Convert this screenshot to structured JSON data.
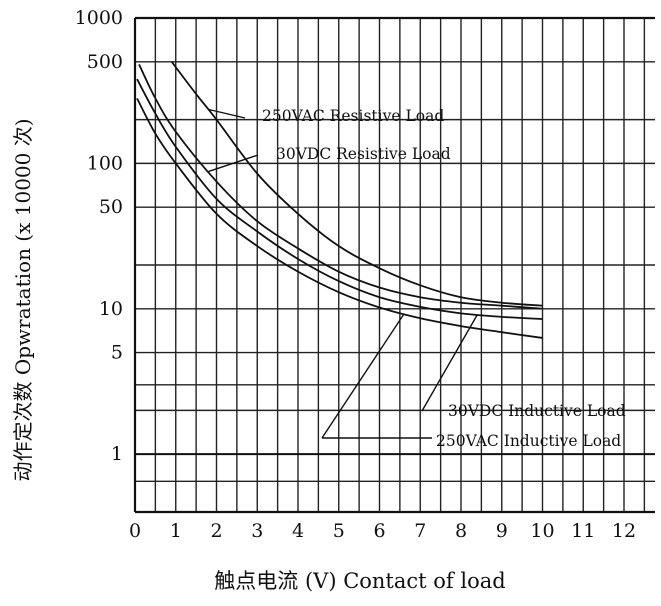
{
  "chart_data": {
    "type": "line",
    "title": "",
    "xlabel": "触点电流 (V) Contact of load",
    "ylabel": "动作定次数 Opwratation (x 10000 次)",
    "x_ticks": [
      0,
      1,
      2,
      3,
      4,
      5,
      6,
      7,
      8,
      9,
      10,
      11,
      12
    ],
    "xlim": [
      0,
      12.7
    ],
    "y_scale": "log",
    "y_ticks": [
      1,
      5,
      10,
      50,
      100,
      500,
      1000
    ],
    "ylim": [
      0.4,
      1000
    ],
    "grid": true,
    "series": [
      {
        "name": "250VAC Resistive Load",
        "x": [
          0.9,
          1.5,
          2,
          3,
          4,
          5,
          6,
          7,
          8,
          9,
          10
        ],
        "y": [
          500,
          300,
          200,
          85,
          45,
          27,
          19,
          14.5,
          12,
          11,
          10.5
        ]
      },
      {
        "name": "30VDC Resistive Load",
        "x": [
          0.1,
          0.5,
          1,
          2,
          3,
          4,
          5,
          6,
          7,
          8,
          9,
          10
        ],
        "y": [
          480,
          280,
          165,
          75,
          40,
          26,
          18,
          14,
          12,
          11,
          10.5,
          10
        ]
      },
      {
        "name": "30VDC Inductive Load",
        "x": [
          0.05,
          0.5,
          1,
          2,
          3,
          4,
          5,
          6,
          7,
          8,
          9,
          10
        ],
        "y": [
          380,
          220,
          130,
          57,
          34,
          22,
          15.5,
          12,
          10.3,
          9.3,
          8.8,
          8.5
        ]
      },
      {
        "name": "250VAC Inductive Load",
        "x": [
          0.05,
          0.5,
          1,
          2,
          3,
          4,
          5,
          6,
          7,
          8,
          9,
          10
        ],
        "y": [
          280,
          160,
          100,
          45,
          27,
          18,
          13,
          10.2,
          8.6,
          7.6,
          6.9,
          6.3
        ]
      }
    ],
    "annotations": [
      {
        "text": "250VAC Resistive Load",
        "series": 0,
        "at_x": 1.8
      },
      {
        "text": "30VDC Resistive Load",
        "series": 1,
        "at_x": 1.8
      },
      {
        "text": "30VDC Inductive Load",
        "series": 2,
        "at_x": 8.4
      },
      {
        "text": "250VAC Inductive Load",
        "series": 3,
        "at_x": 6.6
      }
    ]
  }
}
